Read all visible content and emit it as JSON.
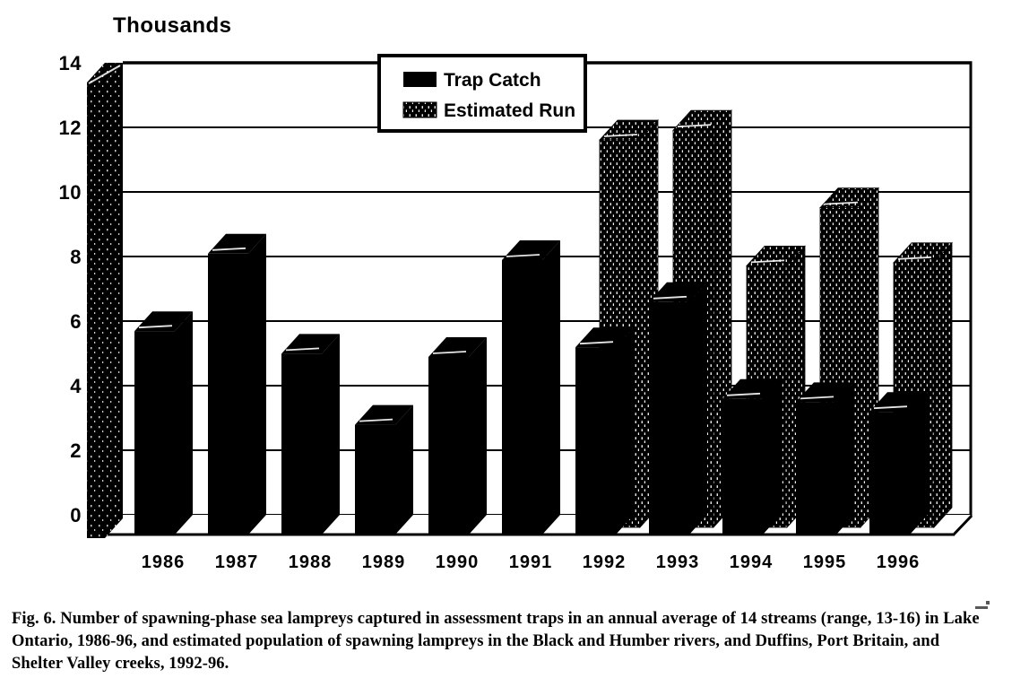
{
  "page": {
    "background": "#ffffff",
    "ink": "#000000"
  },
  "axis_title": "Thousands",
  "legend": {
    "items": [
      {
        "label": "Trap Catch",
        "swatch": "solid-black"
      },
      {
        "label": "Estimated Run",
        "swatch": "speckled"
      }
    ]
  },
  "caption": {
    "lines": [
      "Fig. 6.  Number of spawning-phase sea lampreys captured in assessment traps in an annual average of 14 streams (range, 13-16) in Lake",
      "Ontario, 1986-96, and estimated population of spawning lampreys in the Black and Humber rivers, and Duffins, Port Britain, and",
      "Shelter Valley creeks, 1992-96."
    ]
  },
  "chart_data": {
    "type": "bar",
    "subtype": "3d-column, monochrome scanned",
    "categories": [
      "1986",
      "1987",
      "1988",
      "1989",
      "1990",
      "1991",
      "1992",
      "1993",
      "1994",
      "1995",
      "1996"
    ],
    "series": [
      {
        "name": "Trap Catch",
        "fill": "solid-black",
        "values": [
          6.3,
          8.7,
          5.6,
          3.4,
          5.5,
          8.5,
          5.8,
          7.2,
          4.2,
          4.1,
          3.8
        ]
      },
      {
        "name": "Estimated Run",
        "fill": "speckled",
        "values": [
          null,
          null,
          null,
          null,
          null,
          null,
          12.0,
          12.3,
          8.1,
          9.9,
          8.2
        ]
      }
    ],
    "title": "",
    "xlabel": "",
    "ylabel": "Thousands",
    "ylim": [
      0,
      14
    ],
    "yticks": [
      0,
      2,
      4,
      6,
      8,
      10,
      12,
      14
    ],
    "grid": true,
    "legend_position": "top-center",
    "units": "thousands of lampreys"
  }
}
